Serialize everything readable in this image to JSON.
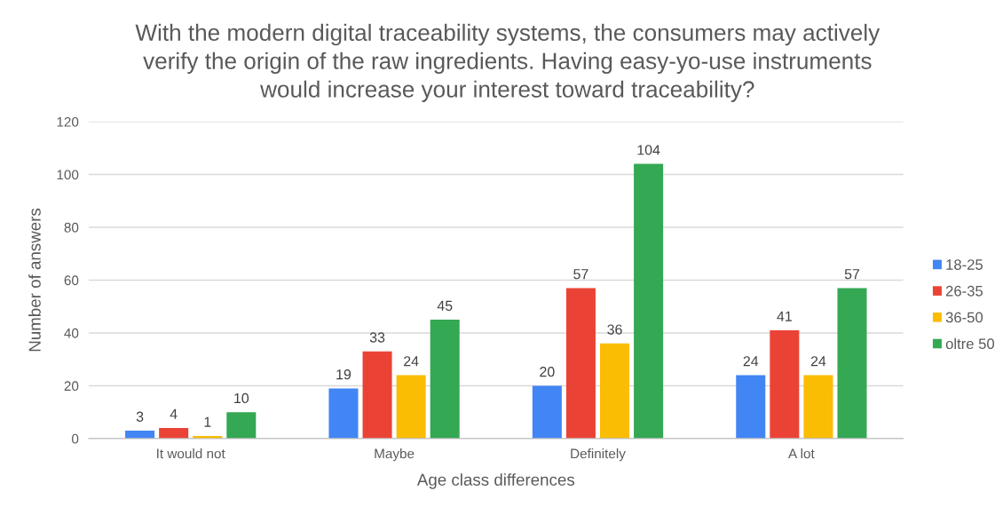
{
  "chart_data": {
    "type": "bar",
    "title": "With the modern digital traceability systems, the consumers may actively verify the origin of the raw ingredients. Having easy-yo-use instruments would increase your interest toward traceability?",
    "xlabel": "Age class differences",
    "ylabel": "Number of answers",
    "categories": [
      "It would not",
      "Maybe",
      "Definitely",
      "A lot"
    ],
    "series": [
      {
        "name": "18-25",
        "color": "#4285f4",
        "values": [
          3,
          19,
          20,
          24
        ]
      },
      {
        "name": "26-35",
        "color": "#ea4335",
        "values": [
          4,
          33,
          57,
          41
        ]
      },
      {
        "name": "36-50",
        "color": "#fbbc04",
        "values": [
          1,
          24,
          36,
          24
        ]
      },
      {
        "name": "oltre 50",
        "color": "#34a853",
        "values": [
          10,
          45,
          104,
          57
        ]
      }
    ],
    "ylim": [
      0,
      120
    ],
    "yticks": [
      0,
      20,
      40,
      60,
      80,
      100,
      120
    ],
    "grid": "y",
    "legend": "right",
    "data_labels": true
  }
}
